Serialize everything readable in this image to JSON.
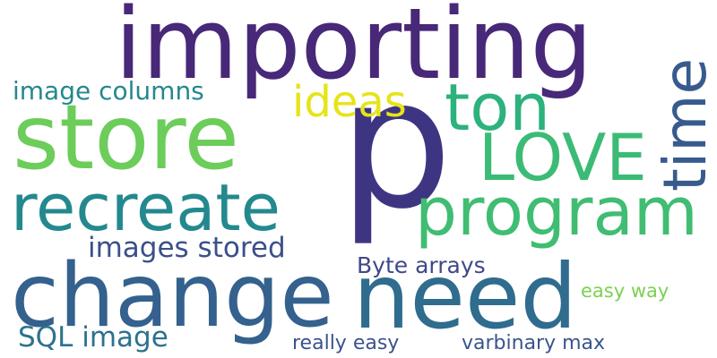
{
  "words": [
    {
      "text": "importing",
      "color": "#482878"
    },
    {
      "text": "p",
      "color": "#3e3582"
    },
    {
      "text": "store",
      "color": "#6ccd5a"
    },
    {
      "text": "change",
      "color": "#34618d"
    },
    {
      "text": "need",
      "color": "#2f6c8e"
    },
    {
      "text": "recreate",
      "color": "#23898e"
    },
    {
      "text": "program",
      "color": "#40bd72"
    },
    {
      "text": "ton",
      "color": "#2db27d"
    },
    {
      "text": "LOVE",
      "color": "#3bbb75"
    },
    {
      "text": "time",
      "color": "#375b8d"
    },
    {
      "text": "ideas",
      "color": "#e6e419"
    },
    {
      "text": "image columns",
      "color": "#24878e"
    },
    {
      "text": "images stored",
      "color": "#3c4f8a"
    },
    {
      "text": "Byte arrays",
      "color": "#3f4889"
    },
    {
      "text": "SQL image",
      "color": "#2c728e"
    },
    {
      "text": "easy way",
      "color": "#7ad151"
    },
    {
      "text": "really easy",
      "color": "#3a538b"
    },
    {
      "text": "varbinary max",
      "color": "#39558c"
    }
  ]
}
